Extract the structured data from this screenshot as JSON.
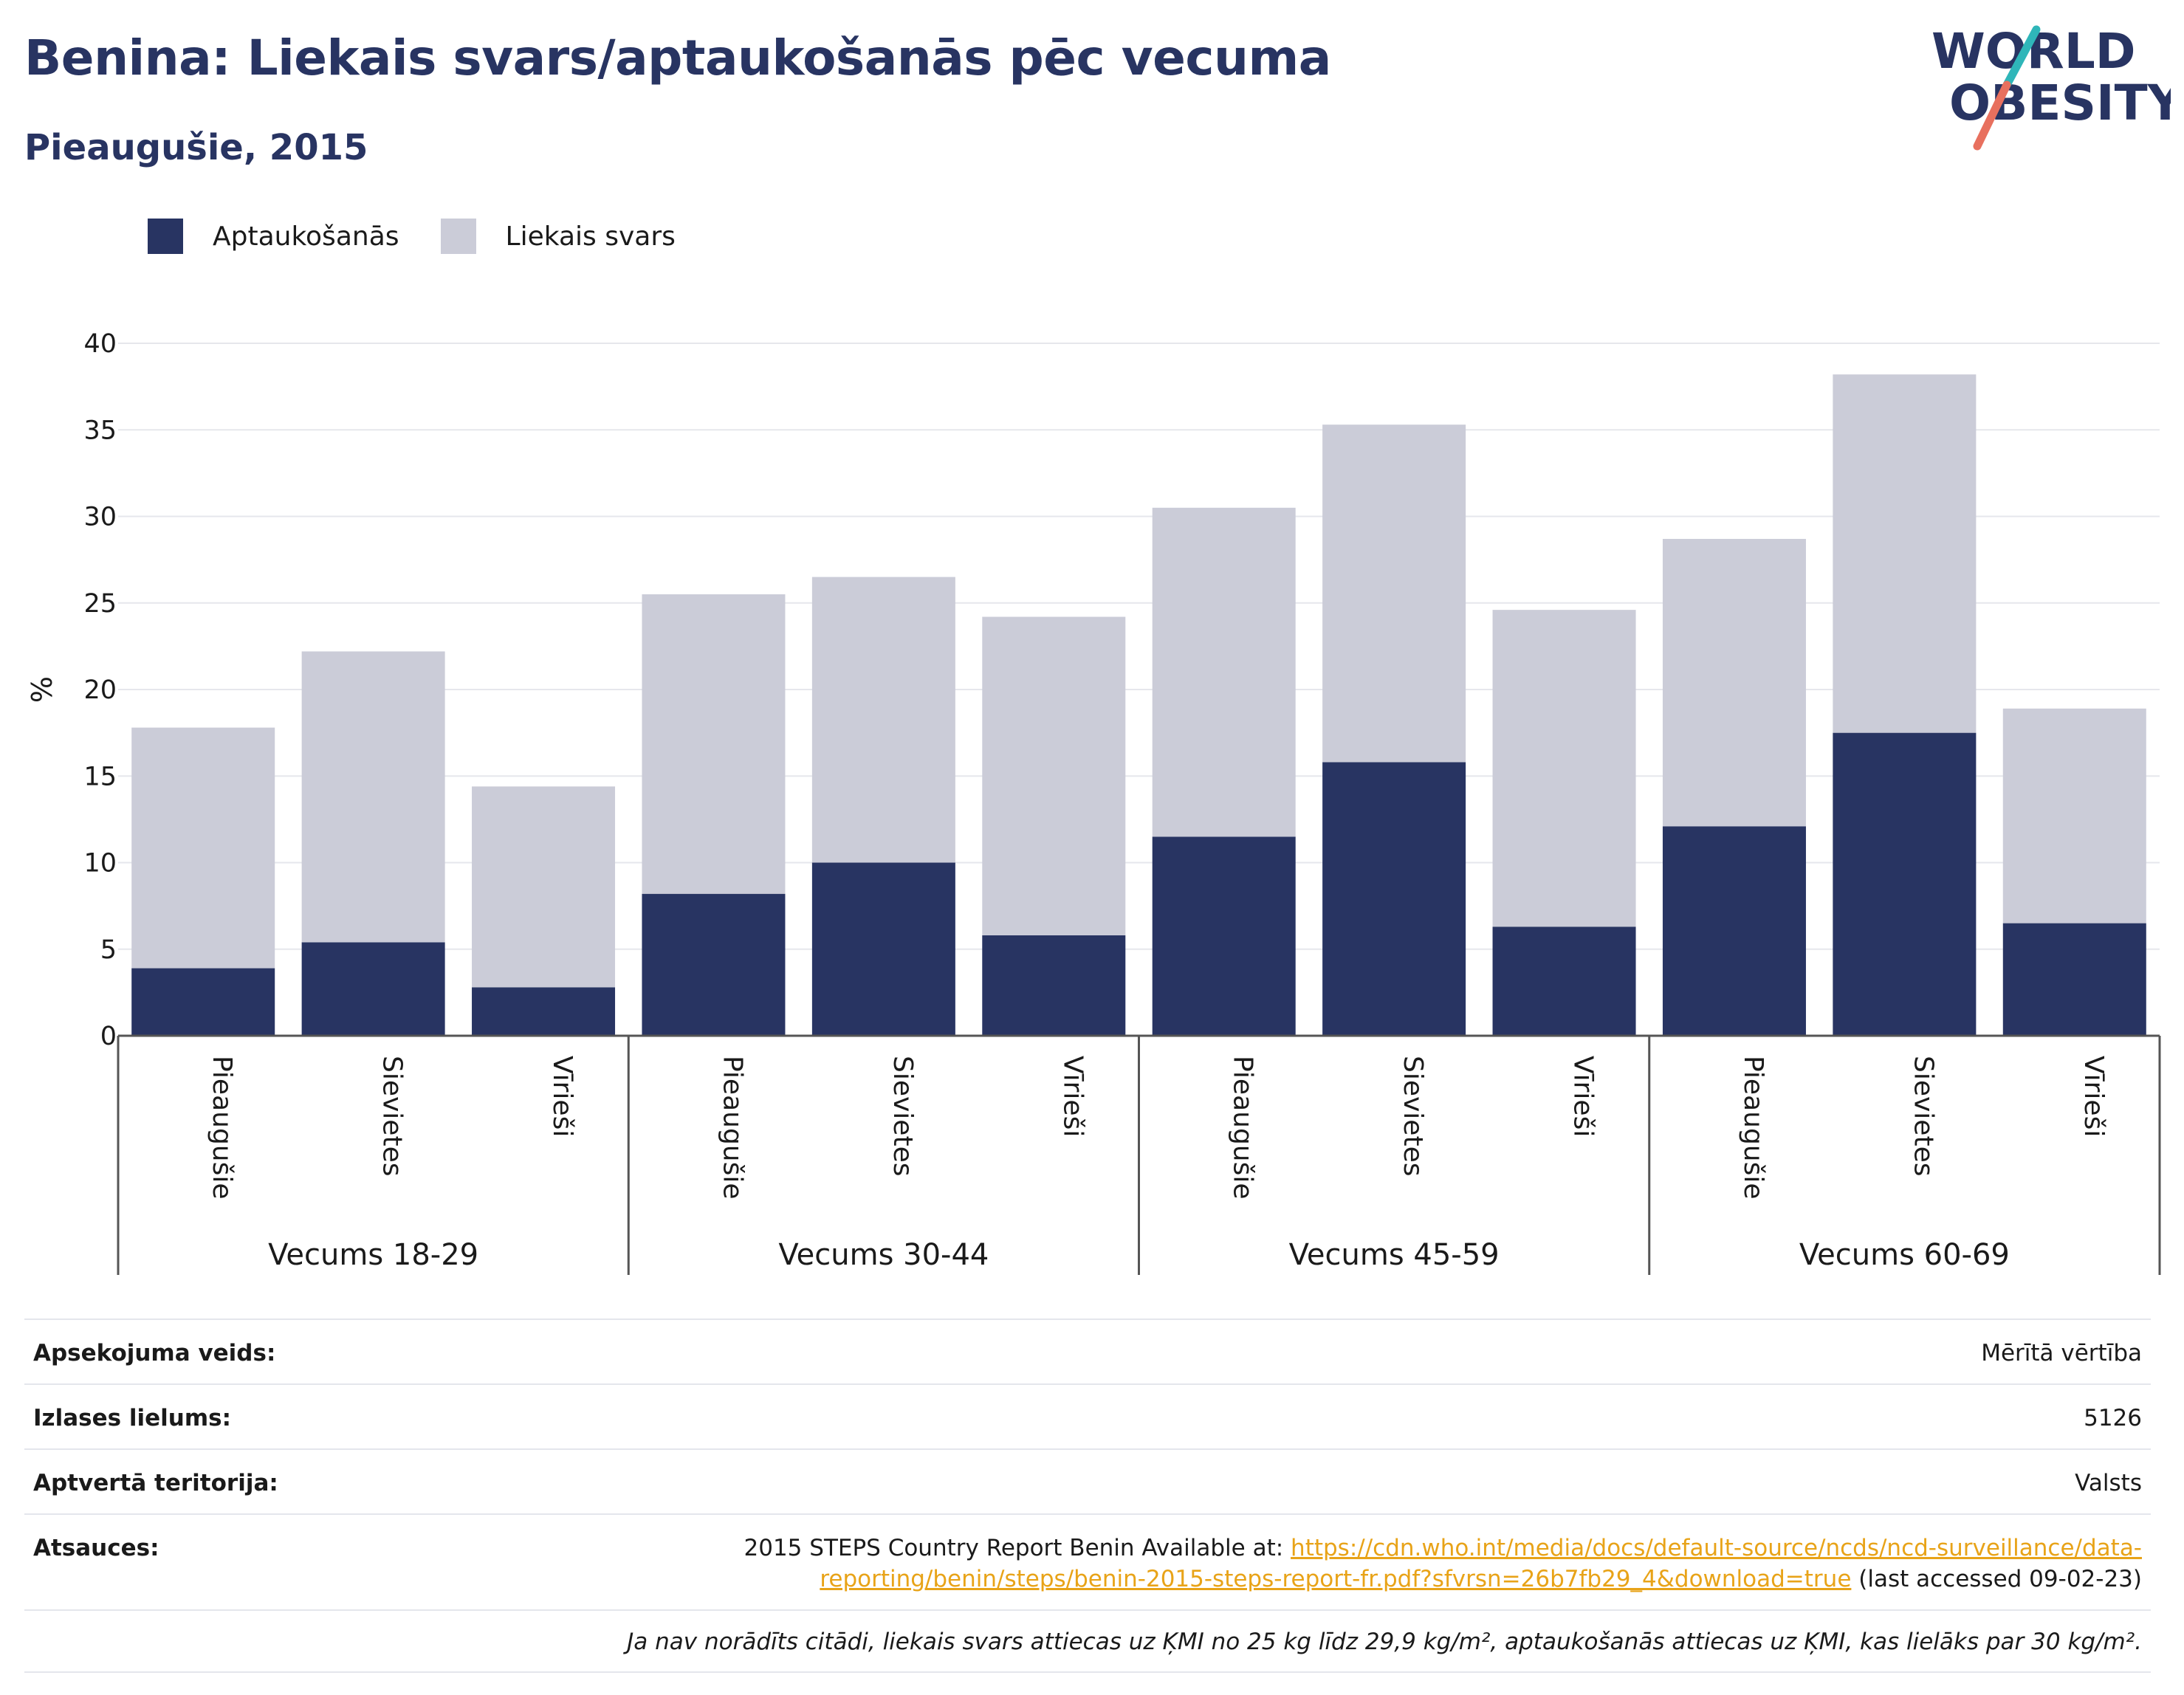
{
  "header": {
    "title": "Benina: Liekais svars/aptaukošanās pēc vecuma",
    "subtitle": "Pieaugušie, 2015"
  },
  "logo": {
    "line1": "WORLD",
    "line2": "OBESITY"
  },
  "colors": {
    "obesity": "#283462",
    "overweight": "#cbccd8",
    "title": "#283462",
    "link": "#e8a318",
    "logo_slash_teal": "#2fb6b9",
    "logo_slash_coral": "#e8705e"
  },
  "chart_data": {
    "type": "bar",
    "stacked": true,
    "ylabel": "%",
    "ylim": [
      0,
      40
    ],
    "yticks": [
      0,
      5,
      10,
      15,
      20,
      25,
      30,
      35,
      40
    ],
    "grid": true,
    "legend_position": "top-left",
    "groups": [
      "Vecums 18-29",
      "Vecums 30-44",
      "Vecums 45-59",
      "Vecums 60-69"
    ],
    "categories": [
      "Pieaugušie",
      "Sievietes",
      "Vīrieši",
      "Pieaugušie",
      "Sievietes",
      "Vīrieši",
      "Pieaugušie",
      "Sievietes",
      "Vīrieši",
      "Pieaugušie",
      "Sievietes",
      "Vīrieši"
    ],
    "series": [
      {
        "name": "Aptaukošanās",
        "values": [
          3.9,
          5.4,
          2.8,
          8.2,
          10.0,
          5.8,
          11.5,
          15.8,
          6.3,
          12.1,
          17.5,
          6.5
        ]
      },
      {
        "name": "Liekais svars",
        "values": [
          13.9,
          16.8,
          11.6,
          17.3,
          16.5,
          18.4,
          19.0,
          19.5,
          18.3,
          16.6,
          20.7,
          12.4
        ]
      }
    ]
  },
  "info": {
    "survey_label": "Apsekojuma veids:",
    "survey_value": "Mērītā vērtība",
    "sample_label": "Izlases lielums:",
    "sample_value": "5126",
    "area_label": "Aptvertā teritorija:",
    "area_value": "Valsts",
    "refs_label": "Atsauces:",
    "refs_prefix": "2015 STEPS Country Report Benin Available at: ",
    "refs_link": "https://cdn.who.int/media/docs/default-source/ncds/ncd-surveillance/data-reporting/benin/steps/benin-2015-steps-report-fr.pdf?sfvrsn=26b7fb29_4&download=true",
    "refs_suffix": " (last accessed 09-02-23)",
    "note": "Ja nav norādīts citādi, liekais svars attiecas uz ĶMI no 25 kg līdz 29,9 kg/m², aptaukošanās attiecas uz ĶMI, kas lielāks par 30 kg/m²."
  }
}
